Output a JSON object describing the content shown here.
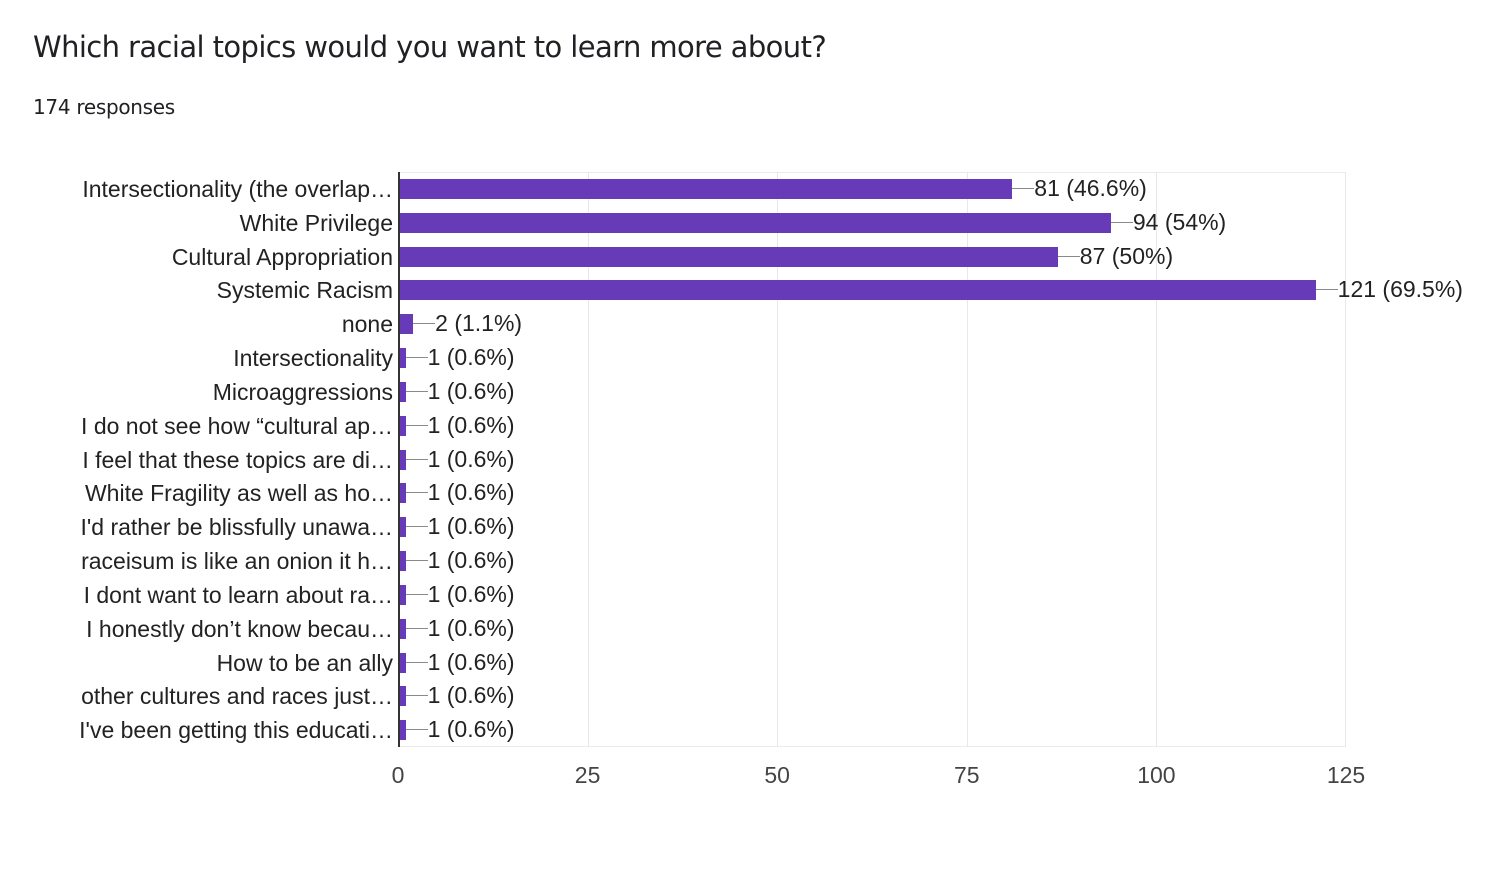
{
  "header": {
    "title": "Which racial topics would you want to learn more about?",
    "responses": "174 responses"
  },
  "colors": {
    "bar": "#673ab7",
    "grid": "#e8e8e8",
    "axis": "#333333",
    "text": "#222222"
  },
  "axis": {
    "ticks": [
      "0",
      "25",
      "50",
      "75",
      "100",
      "125"
    ]
  },
  "rows": [
    {
      "label": "Intersectionality (the overlap…",
      "value": 81,
      "display": "81 (46.6%)"
    },
    {
      "label": "White Privilege",
      "value": 94,
      "display": "94 (54%)"
    },
    {
      "label": "Cultural Appropriation",
      "value": 87,
      "display": "87 (50%)"
    },
    {
      "label": "Systemic Racism",
      "value": 121,
      "display": "121 (69.5%)"
    },
    {
      "label": "none",
      "value": 2,
      "display": "2 (1.1%)"
    },
    {
      "label": "Intersectionality",
      "value": 1,
      "display": "1 (0.6%)"
    },
    {
      "label": "Microaggressions",
      "value": 1,
      "display": "1 (0.6%)"
    },
    {
      "label": "I do not see how “cultural ap…",
      "value": 1,
      "display": "1 (0.6%)"
    },
    {
      "label": "I feel that these topics are di…",
      "value": 1,
      "display": "1 (0.6%)"
    },
    {
      "label": "White Fragility as well as ho…",
      "value": 1,
      "display": "1 (0.6%)"
    },
    {
      "label": "I'd rather be blissfully unawa…",
      "value": 1,
      "display": "1 (0.6%)"
    },
    {
      "label": "raceisum is like an onion it h…",
      "value": 1,
      "display": "1 (0.6%)"
    },
    {
      "label": "I dont want to learn about ra…",
      "value": 1,
      "display": "1 (0.6%)"
    },
    {
      "label": "I honestly don’t know becau…",
      "value": 1,
      "display": "1 (0.6%)"
    },
    {
      "label": "How to be an ally",
      "value": 1,
      "display": "1 (0.6%)"
    },
    {
      "label": "other cultures and races just…",
      "value": 1,
      "display": "1 (0.6%)"
    },
    {
      "label": "I've been getting this educati…",
      "value": 1,
      "display": "1 (0.6%)"
    }
  ],
  "chart_data": {
    "type": "bar",
    "orientation": "horizontal",
    "title": "Which racial topics would you want to learn more about?",
    "subtitle": "174 responses",
    "categories": [
      "Intersectionality (the overlap…",
      "White Privilege",
      "Cultural Appropriation",
      "Systemic Racism",
      "none",
      "Intersectionality",
      "Microaggressions",
      "I do not see how “cultural ap…",
      "I feel that these topics are di…",
      "White Fragility as well as ho…",
      "I'd rather be blissfully unawa…",
      "raceisum is like an onion it h…",
      "I dont want to learn about ra…",
      "I honestly don’t know becau…",
      "How to be an ally",
      "other cultures and races just…",
      "I've been getting this educati…"
    ],
    "values": [
      81,
      94,
      87,
      121,
      2,
      1,
      1,
      1,
      1,
      1,
      1,
      1,
      1,
      1,
      1,
      1,
      1
    ],
    "percentages": [
      46.6,
      54,
      50,
      69.5,
      1.1,
      0.6,
      0.6,
      0.6,
      0.6,
      0.6,
      0.6,
      0.6,
      0.6,
      0.6,
      0.6,
      0.6,
      0.6
    ],
    "data_labels": [
      "81 (46.6%)",
      "94 (54%)",
      "87 (50%)",
      "121 (69.5%)",
      "2 (1.1%)",
      "1 (0.6%)",
      "1 (0.6%)",
      "1 (0.6%)",
      "1 (0.6%)",
      "1 (0.6%)",
      "1 (0.6%)",
      "1 (0.6%)",
      "1 (0.6%)",
      "1 (0.6%)",
      "1 (0.6%)",
      "1 (0.6%)",
      "1 (0.6%)"
    ],
    "xlabel": "",
    "ylabel": "",
    "xlim": [
      0,
      125
    ],
    "xticks": [
      0,
      25,
      50,
      75,
      100,
      125
    ],
    "grid": true,
    "legend": "none",
    "color": "#673ab7"
  }
}
